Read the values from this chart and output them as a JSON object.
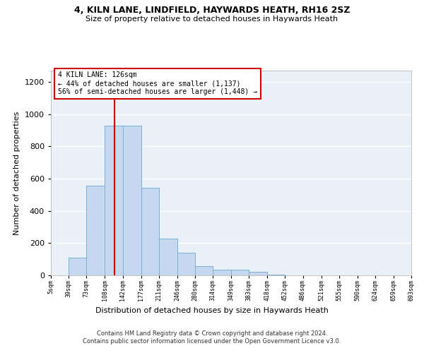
{
  "title": "4, KILN LANE, LINDFIELD, HAYWARDS HEATH, RH16 2SZ",
  "subtitle": "Size of property relative to detached houses in Haywards Heath",
  "xlabel": "Distribution of detached houses by size in Haywards Heath",
  "ylabel": "Number of detached properties",
  "bar_color": "#c5d8f0",
  "bar_edge_color": "#7bafd4",
  "background_color": "#eaf0f8",
  "grid_color": "#ffffff",
  "annotation_text": "4 KILN LANE: 126sqm\n← 44% of detached houses are smaller (1,137)\n56% of semi-detached houses are larger (1,448) →",
  "vline_x": 126,
  "vline_color": "#cc0000",
  "footer": "Contains HM Land Registry data © Crown copyright and database right 2024.\nContains public sector information licensed under the Open Government Licence v3.0.",
  "bin_edges": [
    5,
    39,
    73,
    108,
    142,
    177,
    211,
    246,
    280,
    314,
    349,
    383,
    418,
    452,
    486,
    521,
    555,
    590,
    624,
    659,
    693
  ],
  "bar_heights": [
    2,
    108,
    554,
    930,
    930,
    542,
    228,
    138,
    55,
    35,
    33,
    22,
    3,
    1,
    1,
    1,
    0,
    0,
    0,
    1
  ],
  "ylim": [
    0,
    1270
  ],
  "yticks": [
    0,
    200,
    400,
    600,
    800,
    1000,
    1200
  ]
}
